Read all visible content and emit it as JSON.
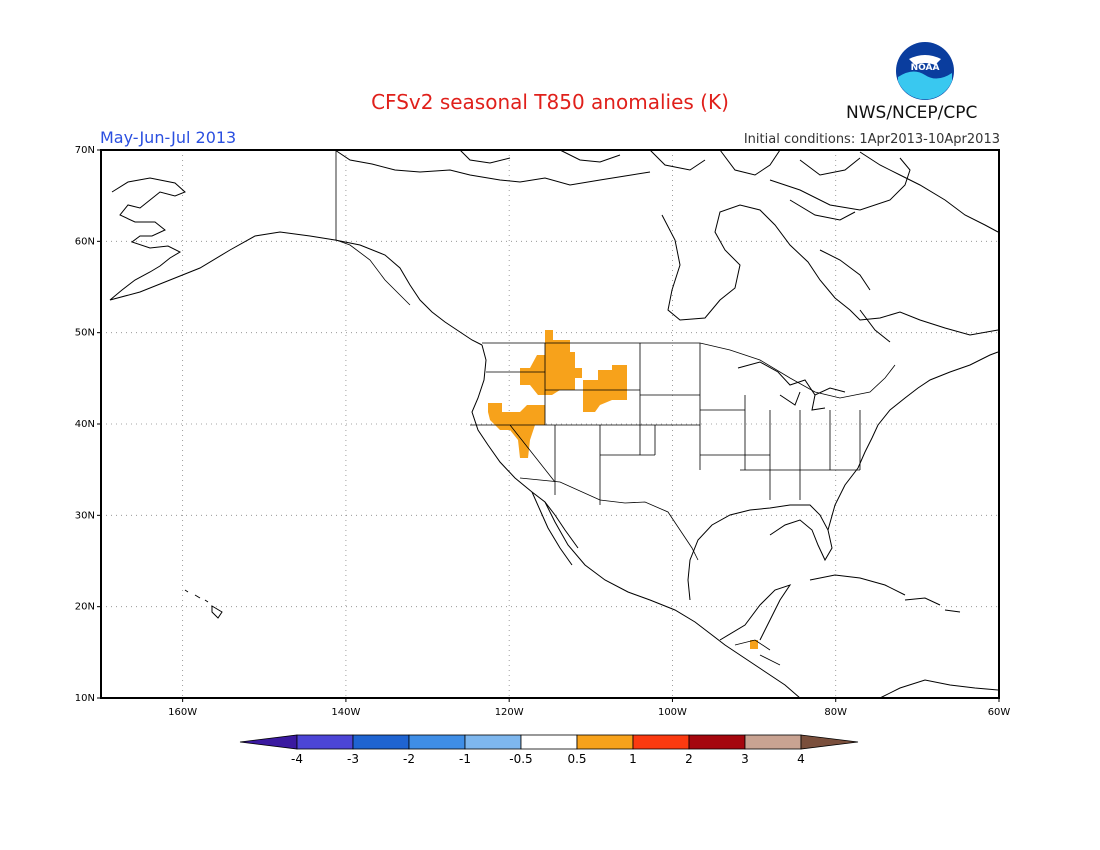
{
  "header": {
    "title": "CFSv2 seasonal T850 anomalies (K)",
    "period": "May-Jun-Jul 2013",
    "initial_conditions": "Initial conditions: 1Apr2013-10Apr2013",
    "agency": "NWS/NCEP/CPC",
    "logo_text": "NOAA"
  },
  "map": {
    "lon_range": [
      -170,
      -60
    ],
    "lat_range": [
      10,
      70
    ],
    "lon_ticks": [
      {
        "value": -160,
        "label": "160W"
      },
      {
        "value": -140,
        "label": "140W"
      },
      {
        "value": -120,
        "label": "120W"
      },
      {
        "value": -100,
        "label": "100W"
      },
      {
        "value": -80,
        "label": "80W"
      },
      {
        "value": -60,
        "label": "60W"
      }
    ],
    "lat_ticks": [
      {
        "value": 10,
        "label": "10N"
      },
      {
        "value": 20,
        "label": "20N"
      },
      {
        "value": 30,
        "label": "30N"
      },
      {
        "value": 40,
        "label": "40N"
      },
      {
        "value": 50,
        "label": "50N"
      },
      {
        "value": 60,
        "label": "60N"
      },
      {
        "value": 70,
        "label": "70N"
      }
    ],
    "grid": "dotted",
    "anomaly_color": "#f7a21b"
  },
  "colorbar": {
    "colors": [
      "#3a19a0",
      "#4c45d6",
      "#1f64d1",
      "#3f8ee6",
      "#7eb7ee",
      "#ffffff",
      "#f7a21b",
      "#fb3a10",
      "#a5070e",
      "#c9a392",
      "#7a4f3c"
    ],
    "labels": [
      "-4",
      "-3",
      "-2",
      "-1",
      "-0.5",
      "0.5",
      "1",
      "2",
      "3",
      "4"
    ]
  }
}
